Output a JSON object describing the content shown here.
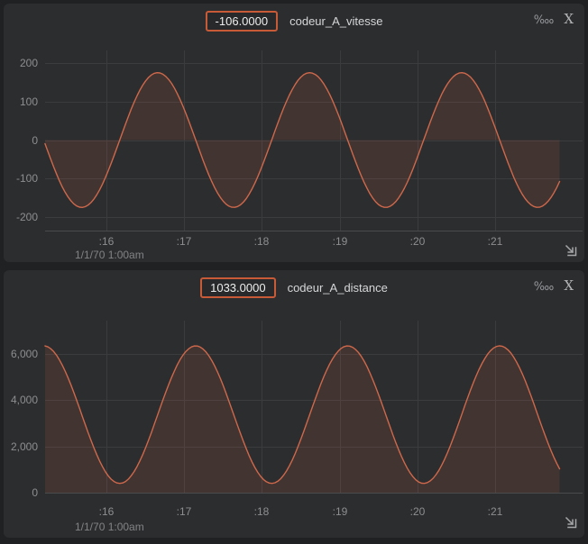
{
  "ui": {
    "stats_icon": "‱",
    "close_icon": "X",
    "accent_color": "#c85a38",
    "series_color": "#cf684b",
    "series_fill": "rgba(205,100,72,0.13)",
    "grid_color": "#3b3c3e",
    "axis_color": "#4a4b4d",
    "panel_background": "#2c2d2f",
    "page_background": "#202122"
  },
  "chart_data": [
    {
      "type": "line",
      "title": "codeur_A_vitesse",
      "current_value": -106.0,
      "current_value_label": "-106.0000",
      "legend_position": "top-center",
      "grid": true,
      "x": {
        "unit": "time (seconds of 1/1/70 1:00am)",
        "ticks": [
          16,
          17,
          18,
          19,
          20,
          21
        ],
        "tick_labels": [
          ":16",
          ":17",
          ":18",
          ":19",
          ":20",
          ":21"
        ],
        "start": 15.21,
        "end": 21.83,
        "date_label": "1/1/70 1:00am"
      },
      "y": {
        "ticks": [
          200,
          100,
          0,
          -100,
          -200
        ],
        "tick_labels": [
          "200",
          "100",
          "0",
          "-100",
          "-200"
        ],
        "min": -235,
        "max": 233
      },
      "series": [
        {
          "name": "codeur_A_vitesse",
          "color": "#cf684b",
          "fill": "rgba(205,100,72,0.13)",
          "fill_baseline": 0,
          "waveform": "sine",
          "amplitude": 175,
          "offset": 0,
          "period": 1.955,
          "ascending_zero_at": 16.171,
          "peak_value": 175,
          "trough_value": -175,
          "peaks_at": [
            16.66,
            18.61,
            20.57
          ],
          "troughs_at": [
            15.68,
            17.63,
            19.59,
            21.54
          ],
          "start_value": -9,
          "end_value": -106
        }
      ]
    },
    {
      "type": "line",
      "title": "codeur_A_distance",
      "current_value": 1033.0,
      "current_value_label": "1033.0000",
      "legend_position": "top-center",
      "grid": true,
      "x": {
        "unit": "time (seconds of 1/1/70 1:00am)",
        "ticks": [
          16,
          17,
          18,
          19,
          20,
          21
        ],
        "tick_labels": [
          ":16",
          ":17",
          ":18",
          ":19",
          ":20",
          ":21"
        ],
        "start": 15.21,
        "end": 21.83,
        "date_label": "1/1/70 1:00am"
      },
      "y": {
        "ticks": [
          6000,
          4000,
          2000,
          0
        ],
        "tick_labels": [
          "6,000",
          "4,000",
          "2,000",
          "0"
        ],
        "min": 0,
        "max": 7330
      },
      "series": [
        {
          "name": "codeur_A_distance",
          "color": "#cf684b",
          "fill": "rgba(205,100,72,0.13)",
          "fill_baseline": 0,
          "waveform": "sine",
          "amplitude": 2975,
          "offset": 3375,
          "period": 1.955,
          "ascending_zero_at": 16.66,
          "peak_value": 6350,
          "trough_value": 400,
          "peaks_at": [
            17.15,
            19.1,
            21.06
          ],
          "troughs_at": [
            16.17,
            18.12,
            20.08
          ],
          "start_value": 6346,
          "end_value": 1033
        }
      ]
    }
  ]
}
